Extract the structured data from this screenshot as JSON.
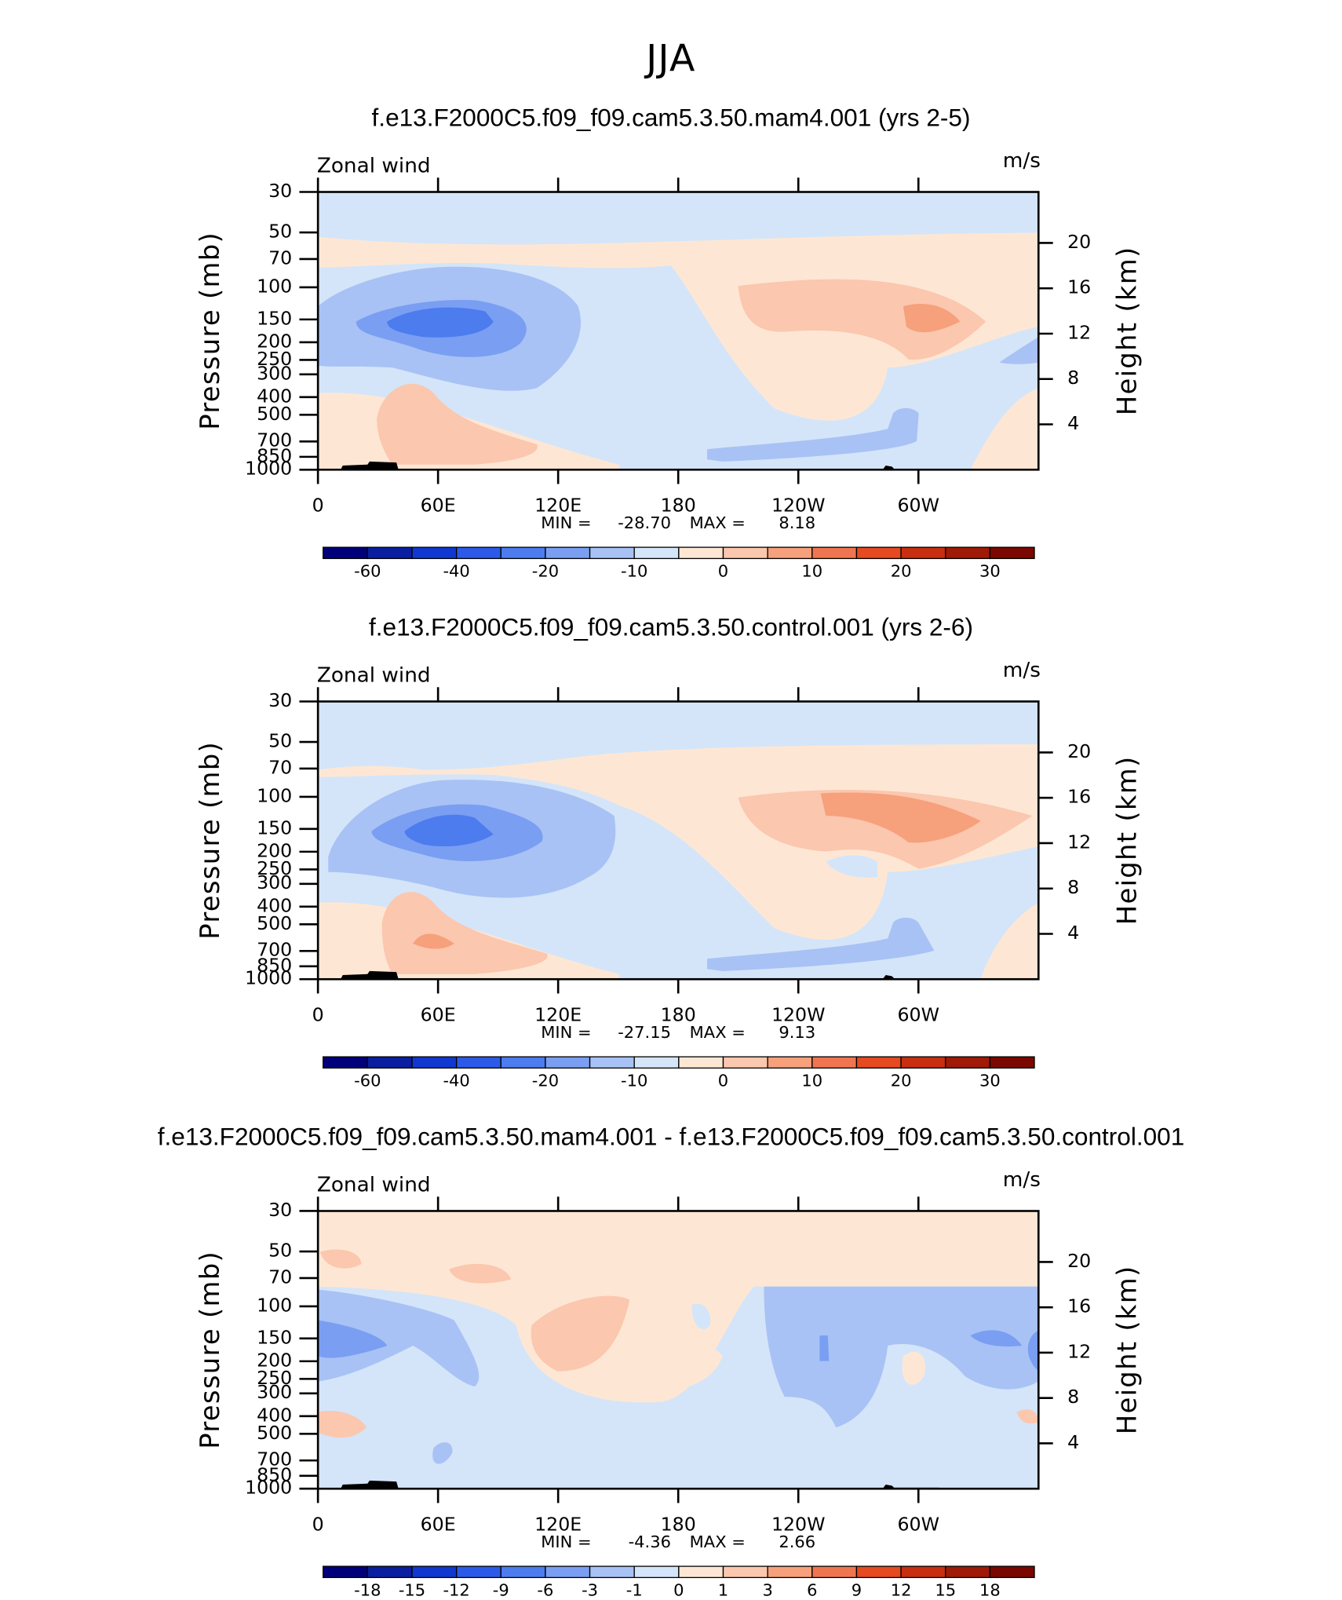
{
  "title": "JJA",
  "chart_data": [
    {
      "type": "contour",
      "title": "f.e13.F2000C5.f09_f09.cam5.3.50.mam4.001 (yrs 2-5)",
      "label": "Zonal wind",
      "units": "m/s",
      "ylabel": "Pressure (mb)",
      "y2label": "Height (km)",
      "xlim": [
        0,
        360
      ],
      "xticks": [
        0,
        {
          "value": 60,
          "label": "60E"
        },
        {
          "value": 120,
          "label": "120E"
        },
        180,
        {
          "value": 240,
          "label": "120W"
        },
        {
          "value": 300,
          "label": "60W"
        }
      ],
      "ylim": [
        1000,
        30
      ],
      "log_y": true,
      "yticks": [
        30,
        50,
        70,
        100,
        150,
        200,
        250,
        300,
        400,
        500,
        700,
        850,
        1000
      ],
      "y2lim": [
        0,
        24.5
      ],
      "y2ticks": [
        4,
        8,
        12,
        16,
        20
      ],
      "stats": {
        "min_text": "MIN =",
        "min": {
          "value": -28.7,
          "label": "-28.70"
        },
        "max_text": "MAX =",
        "max": 8.18
      },
      "colorbar": {
        "colors": [
          "#00007a",
          "#0a1ea0",
          "#1038d0",
          "#2c5ae8",
          "#4c7cee",
          "#7a9ef2",
          "#a8c2f5",
          "#d4e5f9",
          "#fde7d4",
          "#fbc7ae",
          "#f6a07c",
          "#ef7550",
          "#e54a20",
          "#c82e10",
          "#a01a08",
          "#7a0800"
        ],
        "levels": [
          -60,
          null,
          -40,
          null,
          -20,
          null,
          -10,
          null,
          0,
          null,
          10,
          null,
          20,
          null,
          30
        ]
      }
    },
    {
      "type": "contour",
      "title": "f.e13.F2000C5.f09_f09.cam5.3.50.control.001 (yrs 2-6)",
      "label": "Zonal wind",
      "units": "m/s",
      "ylabel": "Pressure (mb)",
      "y2label": "Height (km)",
      "xlim": [
        0,
        360
      ],
      "xticks": [
        0,
        {
          "value": 60,
          "label": "60E"
        },
        {
          "value": 120,
          "label": "120E"
        },
        180,
        {
          "value": 240,
          "label": "120W"
        },
        {
          "value": 300,
          "label": "60W"
        }
      ],
      "ylim": [
        1000,
        30
      ],
      "log_y": true,
      "yticks": [
        30,
        50,
        70,
        100,
        150,
        200,
        250,
        300,
        400,
        500,
        700,
        850,
        1000
      ],
      "y2lim": [
        0,
        24.5
      ],
      "y2ticks": [
        4,
        8,
        12,
        16,
        20
      ],
      "stats": {
        "min_text": "MIN =",
        "min": -27.15,
        "max_text": "MAX =",
        "max": 9.13
      },
      "colorbar": {
        "colors": [
          "#00007a",
          "#0a1ea0",
          "#1038d0",
          "#2c5ae8",
          "#4c7cee",
          "#7a9ef2",
          "#a8c2f5",
          "#d4e5f9",
          "#fde7d4",
          "#fbc7ae",
          "#f6a07c",
          "#ef7550",
          "#e54a20",
          "#c82e10",
          "#a01a08",
          "#7a0800"
        ],
        "levels": [
          -60,
          null,
          -40,
          null,
          -20,
          null,
          -10,
          null,
          0,
          null,
          10,
          null,
          20,
          null,
          30
        ]
      }
    },
    {
      "type": "contour",
      "title": "f.e13.F2000C5.f09_f09.cam5.3.50.mam4.001 - f.e13.F2000C5.f09_f09.cam5.3.50.control.001",
      "label": "Zonal wind",
      "units": "m/s",
      "ylabel": "Pressure (mb)",
      "y2label": "Height (km)",
      "xlim": [
        0,
        360
      ],
      "xticks": [
        0,
        {
          "value": 60,
          "label": "60E"
        },
        {
          "value": 120,
          "label": "120E"
        },
        180,
        {
          "value": 240,
          "label": "120W"
        },
        {
          "value": 300,
          "label": "60W"
        }
      ],
      "ylim": [
        1000,
        30
      ],
      "log_y": true,
      "yticks": [
        30,
        50,
        70,
        100,
        150,
        200,
        250,
        300,
        400,
        500,
        700,
        850,
        1000
      ],
      "y2lim": [
        0,
        24.5
      ],
      "y2ticks": [
        4,
        8,
        12,
        16,
        20
      ],
      "stats": {
        "min_text": "MIN =",
        "min": -4.36,
        "max_text": "MAX =",
        "max": 2.66
      },
      "colorbar": {
        "colors": [
          "#00007a",
          "#0a1ea0",
          "#1038d0",
          "#2c5ae8",
          "#4c7cee",
          "#7a9ef2",
          "#a8c2f5",
          "#d4e5f9",
          "#fde7d4",
          "#fbc7ae",
          "#f6a07c",
          "#ef7550",
          "#e54a20",
          "#c82e10",
          "#a01a08",
          "#7a0800"
        ],
        "levels": [
          -18,
          -15,
          -12,
          -9,
          -6,
          -3,
          -1,
          0,
          1,
          3,
          6,
          9,
          12,
          15,
          18
        ]
      }
    }
  ]
}
